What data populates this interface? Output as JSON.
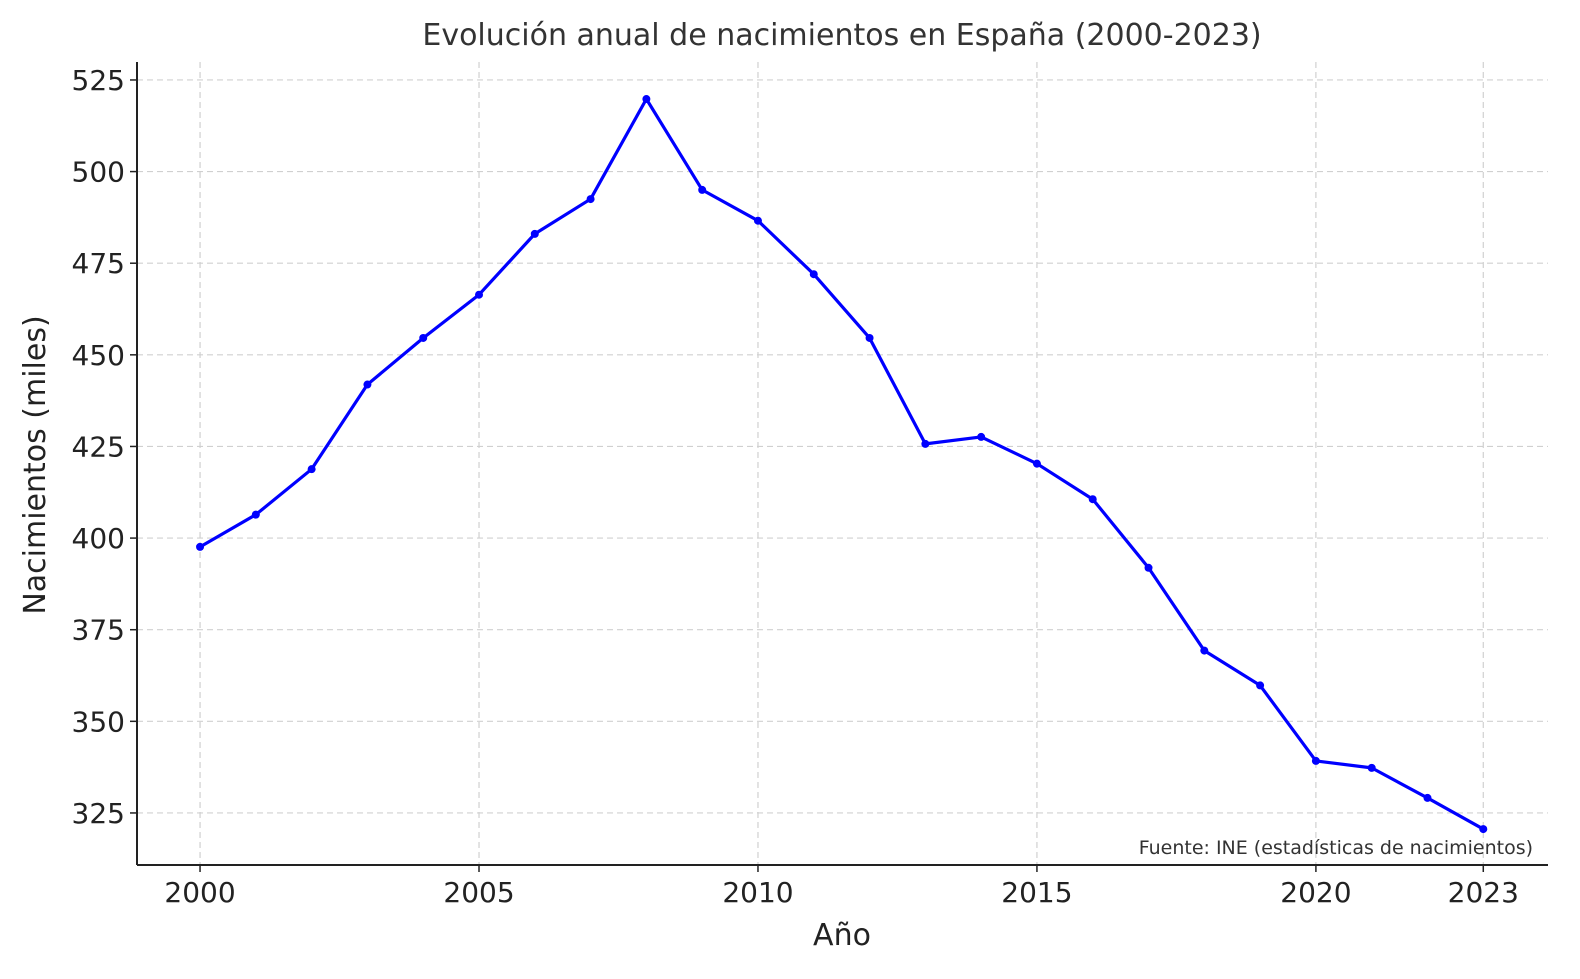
{
  "chart_data": {
    "type": "line",
    "title": "Evolución anual de nacimientos en España (2000-2023)",
    "xlabel": "Año",
    "ylabel": "Nacimientos (miles)",
    "annotation": "Fuente: INE (estadísticas de nacimientos)",
    "x": [
      2000,
      2001,
      2002,
      2003,
      2004,
      2005,
      2006,
      2007,
      2008,
      2009,
      2010,
      2011,
      2012,
      2013,
      2014,
      2015,
      2016,
      2017,
      2018,
      2019,
      2020,
      2021,
      2022,
      2023
    ],
    "series": [
      {
        "name": "Nacimientos",
        "color": "#0000ff",
        "values": [
          397.6,
          406.4,
          418.8,
          441.9,
          454.6,
          466.4,
          483.0,
          492.5,
          519.8,
          495.0,
          486.6,
          472.0,
          454.6,
          425.7,
          427.6,
          420.3,
          410.6,
          391.9,
          369.3,
          359.8,
          339.2,
          337.3,
          329.1,
          320.6
        ]
      }
    ],
    "xticks": [
      "2000",
      "2005",
      "2010",
      "2015",
      "2020",
      "2023"
    ],
    "yticks": [
      "325",
      "350",
      "375",
      "400",
      "425",
      "450",
      "475",
      "500",
      "525"
    ],
    "xlim": [
      1998.87,
      2024.16
    ],
    "ylim": [
      310.8,
      529.9
    ],
    "grid": true,
    "legend": "none"
  }
}
